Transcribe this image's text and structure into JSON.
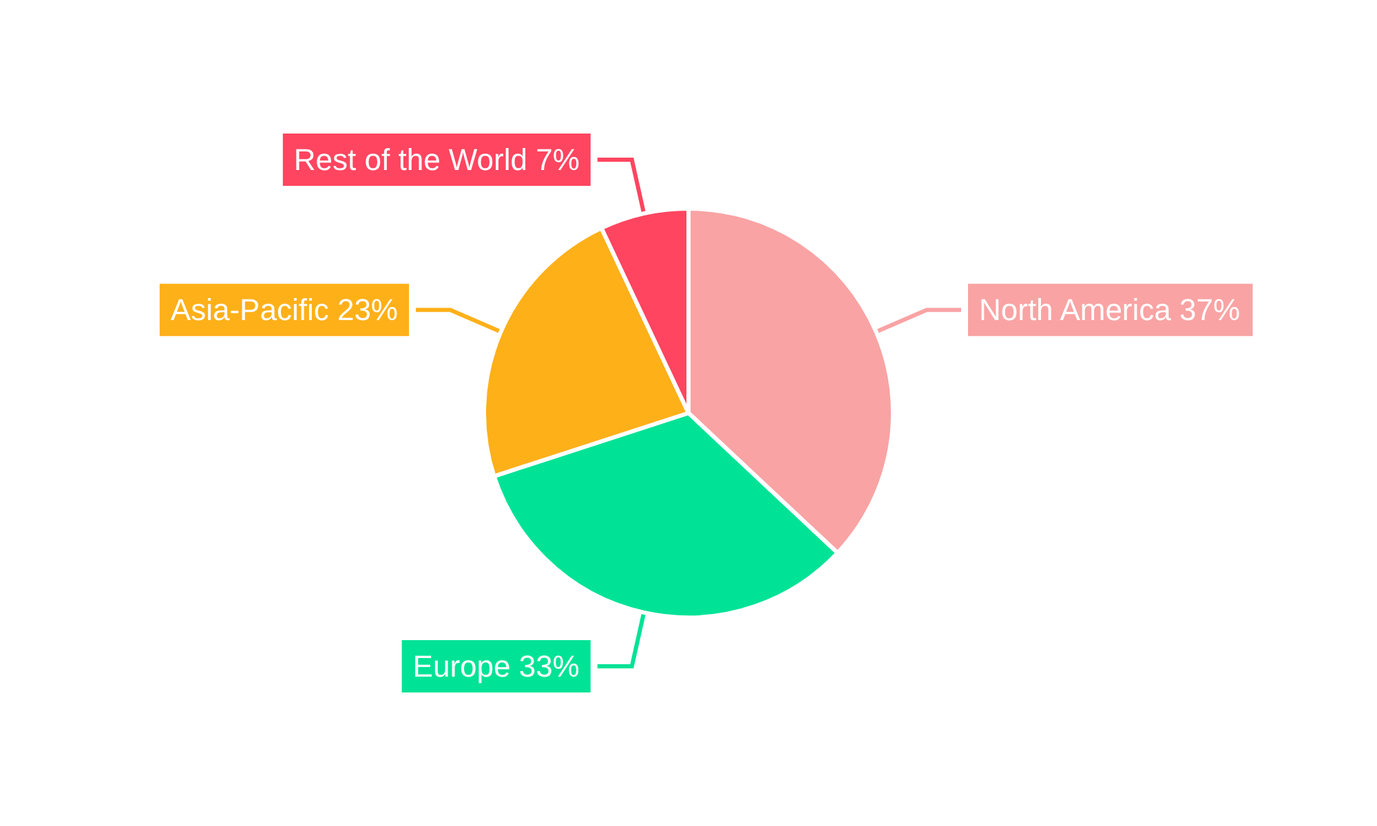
{
  "chart_data": {
    "type": "pie",
    "categories": [
      "North America",
      "Europe",
      "Asia-Pacific",
      "Rest of the World"
    ],
    "values": [
      37,
      33,
      23,
      7
    ],
    "colors": [
      "#f9a3a4",
      "#00e396",
      "#feb019",
      "#ff4560"
    ],
    "value_labels": [
      "37%",
      "33%",
      "23%",
      "7%"
    ],
    "legend": false
  }
}
